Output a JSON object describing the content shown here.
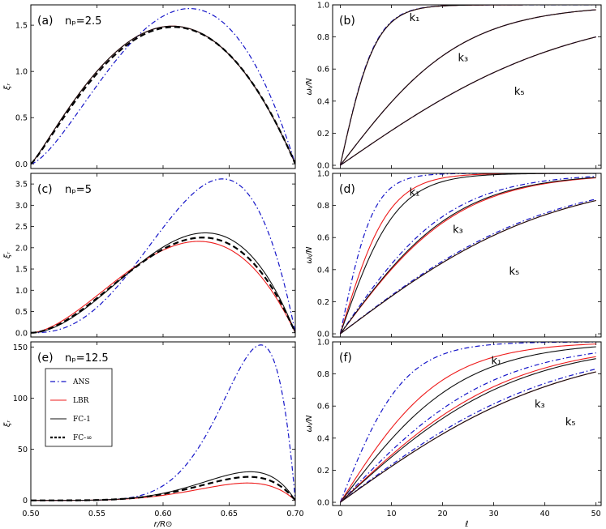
{
  "chart_data": [
    {
      "id": "a",
      "type": "line",
      "label": "(a)",
      "annotation": "nₚ=2.5",
      "xlim": [
        0.5,
        0.7
      ],
      "ylim": [
        -0.05,
        1.72
      ],
      "yticks": [
        0.0,
        0.5,
        1.0,
        1.5
      ],
      "ytick_labels": [
        "0.0",
        "0.5",
        "1.0",
        "1.5"
      ],
      "ylabel": "ξᵣ",
      "series": [
        {
          "name": "ANS",
          "peak_x": 0.62,
          "peak_y": 1.68
        },
        {
          "name": "LBR",
          "peak_x": 0.607,
          "peak_y": 1.49
        },
        {
          "name": "FC-1",
          "peak_x": 0.607,
          "peak_y": 1.49
        },
        {
          "name": "FC-∞",
          "peak_x": 0.608,
          "peak_y": 1.48
        }
      ]
    },
    {
      "id": "c",
      "type": "line",
      "label": "(c)",
      "annotation": "nₚ=5",
      "xlim": [
        0.5,
        0.7
      ],
      "ylim": [
        -0.1,
        3.75
      ],
      "yticks": [
        0.0,
        0.5,
        1.0,
        1.5,
        2.0,
        2.5,
        3.0,
        3.5
      ],
      "ytick_labels": [
        "0.0",
        "0.5",
        "1.0",
        "1.5",
        "2.0",
        "2.5",
        "3.0",
        "3.5"
      ],
      "ylabel": "ξᵣ",
      "series": [
        {
          "name": "ANS",
          "peak_x": 0.645,
          "peak_y": 3.62
        },
        {
          "name": "LBR",
          "peak_x": 0.627,
          "peak_y": 2.15
        },
        {
          "name": "FC-1",
          "peak_x": 0.632,
          "peak_y": 2.35
        },
        {
          "name": "FC-∞",
          "peak_x": 0.63,
          "peak_y": 2.24
        }
      ]
    },
    {
      "id": "e",
      "type": "line",
      "label": "(e)",
      "annotation": "nₚ=12.5",
      "xlim": [
        0.5,
        0.7
      ],
      "ylim": [
        -5,
        155
      ],
      "yticks": [
        0,
        50,
        100,
        150
      ],
      "ytick_labels": [
        "0",
        "50",
        "100",
        "150"
      ],
      "xticks": [
        0.5,
        0.55,
        0.6,
        0.65,
        0.7
      ],
      "xtick_labels": [
        "0.50",
        "0.55",
        "0.60",
        "0.65",
        "0.70"
      ],
      "xlabel": "r/R⊙",
      "ylabel": "ξᵣ",
      "legend_position": "left",
      "series": [
        {
          "name": "ANS",
          "peak_x": 0.674,
          "peak_y": 152
        },
        {
          "name": "LBR",
          "peak_x": 0.664,
          "peak_y": 17
        },
        {
          "name": "FC-1",
          "peak_x": 0.666,
          "peak_y": 28
        },
        {
          "name": "FC-∞",
          "peak_x": 0.665,
          "peak_y": 23
        }
      ]
    },
    {
      "id": "b",
      "type": "line",
      "label": "(b)",
      "xlim": [
        -1.5,
        51
      ],
      "ylim": [
        -0.02,
        1.0
      ],
      "yticks": [
        0.0,
        0.2,
        0.4,
        0.6,
        0.8,
        1.0
      ],
      "ytick_labels": [
        "0.0",
        "0.2",
        "0.4",
        "0.6",
        "0.8",
        "1.0"
      ],
      "ylabel": "ωᵢ/N",
      "curve_labels": [
        {
          "text": "k₁",
          "x": 13.5,
          "y": 0.9
        },
        {
          "text": "k₃",
          "x": 23,
          "y": 0.65
        },
        {
          "text": "k₅",
          "x": 34,
          "y": 0.44
        }
      ],
      "series": [
        {
          "name": "ANS k1",
          "scale": 6.9
        },
        {
          "name": "LBR k1",
          "scale": 7.0
        },
        {
          "name": "FC-1 k1",
          "scale": 7.0
        },
        {
          "name": "ANS k3",
          "scale": 24.0
        },
        {
          "name": "LBR k3",
          "scale": 24.0
        },
        {
          "name": "FC-1 k3",
          "scale": 24.0
        },
        {
          "name": "ANS k5",
          "scale": 45.5
        },
        {
          "name": "LBR k5",
          "scale": 45.5
        },
        {
          "name": "FC-1 k5",
          "scale": 45.5
        }
      ]
    },
    {
      "id": "d",
      "type": "line",
      "label": "(d)",
      "xlim": [
        -1.5,
        51
      ],
      "ylim": [
        -0.02,
        1.0
      ],
      "yticks": [
        0.0,
        0.2,
        0.4,
        0.6,
        0.8,
        1.0
      ],
      "ytick_labels": [
        "0.0",
        "0.2",
        "0.4",
        "0.6",
        "0.8",
        "1.0"
      ],
      "ylabel": "ωᵢ/N",
      "curve_labels": [
        {
          "text": "k₁",
          "x": 13.5,
          "y": 0.86
        },
        {
          "text": "k₃",
          "x": 22,
          "y": 0.63
        },
        {
          "text": "k₅",
          "x": 33,
          "y": 0.37
        }
      ],
      "series": [
        {
          "name": "ANS k1",
          "scale": 6.5
        },
        {
          "name": "LBR k1",
          "scale": 9.5
        },
        {
          "name": "FC-1 k1",
          "scale": 11.0
        },
        {
          "name": "ANS k3",
          "scale": 21.5
        },
        {
          "name": "LBR k3",
          "scale": 23.5
        },
        {
          "name": "FC-1 k3",
          "scale": 23.0
        },
        {
          "name": "ANS k5",
          "scale": 41.0
        },
        {
          "name": "LBR k5",
          "scale": 42.0
        },
        {
          "name": "FC-1 k5",
          "scale": 42.0
        }
      ]
    },
    {
      "id": "f",
      "type": "line",
      "label": "(f)",
      "xlim": [
        -1.5,
        51
      ],
      "ylim": [
        -0.02,
        1.0
      ],
      "yticks": [
        0.0,
        0.2,
        0.4,
        0.6,
        0.8,
        1.0
      ],
      "ytick_labels": [
        "0.0",
        "0.2",
        "0.4",
        "0.6",
        "0.8",
        "1.0"
      ],
      "xticks": [
        0,
        10,
        20,
        30,
        40,
        50
      ],
      "xtick_labels": [
        "0",
        "10",
        "20",
        "30",
        "40",
        "50"
      ],
      "xlabel": "ℓ",
      "ylabel": "ωᵢ/N",
      "curve_labels": [
        {
          "text": "k₁",
          "x": 29.5,
          "y": 0.86
        },
        {
          "text": "k₃",
          "x": 38,
          "y": 0.59
        },
        {
          "text": "k₅",
          "x": 44,
          "y": 0.48
        }
      ],
      "series": [
        {
          "name": "ANS k1",
          "scale": 12.5
        },
        {
          "name": "LBR k1",
          "scale": 20.0
        },
        {
          "name": "FC-1 k1",
          "scale": 24.0
        },
        {
          "name": "ANS k3",
          "scale": 30.0
        },
        {
          "name": "LBR k3",
          "scale": 33.0
        },
        {
          "name": "FC-1 k3",
          "scale": 34.5
        },
        {
          "name": "ANS k5",
          "scale": 42.0
        },
        {
          "name": "LBR k5",
          "scale": 44.0
        },
        {
          "name": "FC-1 k5",
          "scale": 44.0
        }
      ]
    }
  ],
  "legend": [
    {
      "name": "ANS",
      "color": "#1515c8",
      "style": "dashdot"
    },
    {
      "name": "LBR",
      "color": "#ee1c1c",
      "style": "solid"
    },
    {
      "name": "FC-1",
      "color": "#111111",
      "style": "solid"
    },
    {
      "name": "FC-∞",
      "color": "#000000",
      "style": "dashed"
    }
  ],
  "colors": {
    "ANS": "#1515c8",
    "LBR": "#ee1c1c",
    "FC-1": "#111111",
    "FC-∞": "#000000"
  }
}
